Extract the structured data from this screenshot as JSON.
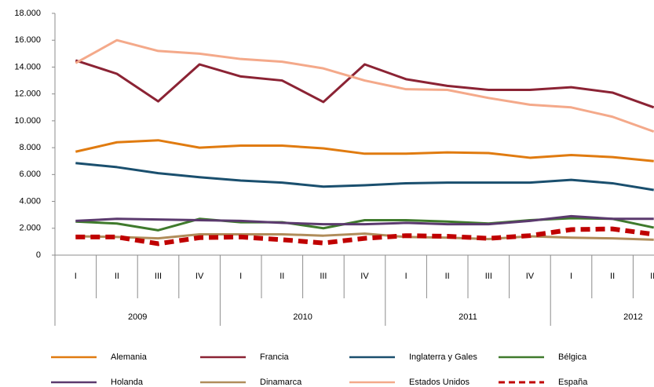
{
  "chart_data": {
    "type": "line",
    "categories": [
      "I",
      "II",
      "III",
      "IV",
      "I",
      "II",
      "III",
      "IV",
      "I",
      "II",
      "III",
      "IV",
      "I",
      "II",
      "III"
    ],
    "years": [
      "2009",
      "2010",
      "2011",
      "2012"
    ],
    "ylim": [
      0,
      18000
    ],
    "yticks": [
      0,
      {
        "value": 2000,
        "label": "2.000"
      },
      {
        "value": 4000,
        "label": "4.000"
      },
      {
        "value": 6000,
        "label": "6.000"
      },
      {
        "value": 8000,
        "label": "8.000"
      },
      {
        "value": 10000,
        "label": "10.000"
      },
      {
        "value": 12000,
        "label": "12.000"
      },
      {
        "value": 14000,
        "label": "14.000"
      },
      {
        "value": 16000,
        "label": "16.000"
      },
      {
        "value": 18000,
        "label": "18.000"
      }
    ],
    "grid": false,
    "legend": "bottom",
    "series": [
      {
        "name": "Alemania",
        "color": "#e07b10",
        "values": [
          7700,
          8400,
          8550,
          8000,
          8150,
          8150,
          7950,
          7550,
          7550,
          7650,
          7600,
          7250,
          7450,
          7300,
          7000
        ]
      },
      {
        "name": "Francia",
        "color": "#8b2334",
        "values": [
          14500,
          13500,
          11450,
          14200,
          13300,
          13000,
          11400,
          14200,
          13100,
          12600,
          12300,
          12300,
          12500,
          12100,
          11000
        ]
      },
      {
        "name": "Inglaterra y Gales",
        "color": "#1a4f6e",
        "values": [
          6850,
          6550,
          6100,
          5800,
          5550,
          5400,
          5100,
          5200,
          5350,
          5400,
          5400,
          5400,
          5600,
          5350,
          4850
        ]
      },
      {
        "name": "Bélgica",
        "color": "#3f7a2c",
        "values": [
          2500,
          2350,
          1850,
          2700,
          2450,
          2450,
          2000,
          2600,
          2600,
          2500,
          2350,
          2600,
          2750,
          2700,
          2050
        ]
      },
      {
        "name": "Holanda",
        "color": "#5b3a6e",
        "values": [
          2550,
          2700,
          2650,
          2600,
          2550,
          2400,
          2300,
          2300,
          2400,
          2300,
          2300,
          2550,
          2900,
          2700,
          2700
        ]
      },
      {
        "name": "Dinamarca",
        "color": "#b08d5b",
        "values": [
          1400,
          1350,
          1250,
          1550,
          1550,
          1550,
          1450,
          1600,
          1350,
          1300,
          1200,
          1400,
          1300,
          1250,
          1150
        ]
      },
      {
        "name": "Estados Unidos",
        "color": "#f4a98a",
        "values": [
          14300,
          16000,
          15200,
          15000,
          14600,
          14400,
          13900,
          13000,
          12350,
          12300,
          11700,
          11200,
          11000,
          10300,
          9200
        ]
      },
      {
        "name": "España",
        "color": "#c00000",
        "dashed": true,
        "values": [
          1350,
          1350,
          850,
          1300,
          1350,
          1150,
          900,
          1250,
          1450,
          1400,
          1250,
          1450,
          1900,
          1950,
          1550
        ]
      }
    ]
  }
}
